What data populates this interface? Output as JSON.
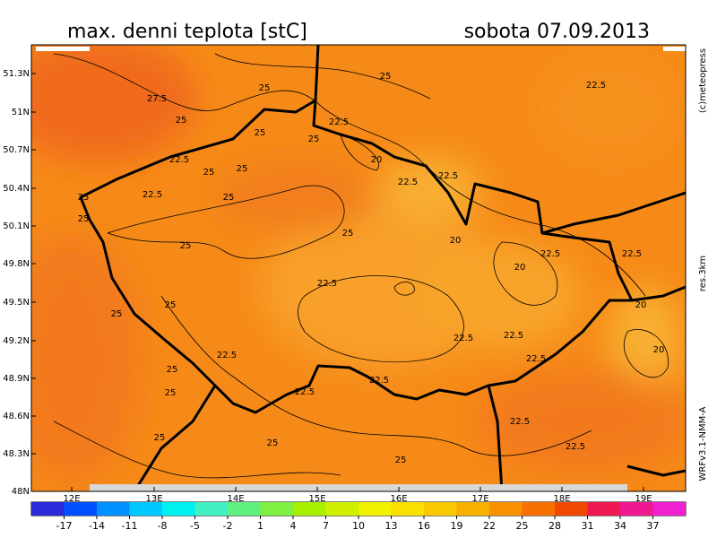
{
  "title": "max. denni teplota [stC]",
  "date": "sobota 07.09.2013",
  "credits": [
    "(c)meteopress",
    "res.3km",
    "WRFv3.1-NMM-A"
  ],
  "lat_labels": [
    "51.3N",
    "51N",
    "50.7N",
    "50.4N",
    "50.1N",
    "49.8N",
    "49.5N",
    "49.2N",
    "48.9N",
    "48.6N",
    "48.3N",
    "48N"
  ],
  "lon_labels": [
    "12E",
    "13E",
    "14E",
    "15E",
    "16E",
    "17E",
    "18E",
    "19E"
  ],
  "contour_labels": [
    "27.5",
    "25",
    "25",
    "22.5",
    "22.5",
    "25",
    "25",
    "25",
    "22.5",
    "20",
    "25",
    "25",
    "22.5",
    "22.5",
    "25",
    "22.5",
    "25",
    "25",
    "20",
    "25",
    "25",
    "20",
    "22.5",
    "22.5",
    "22.5",
    "25",
    "25",
    "20",
    "22.5",
    "22.5",
    "20",
    "22.5",
    "22.5",
    "25",
    "22.5",
    "22.5",
    "25",
    "22.5",
    "25",
    "22.5",
    "25",
    "25"
  ],
  "colorbar": {
    "lim": [
      -20,
      40
    ],
    "ticks": [
      -17,
      -14,
      -11,
      -8,
      -5,
      -2,
      1,
      4,
      7,
      10,
      13,
      16,
      19,
      22,
      25,
      28,
      31,
      34,
      37
    ],
    "colors": [
      "#2a2ad8",
      "#0050ff",
      "#0090ff",
      "#00c8ff",
      "#00f0f0",
      "#40f0c0",
      "#60f080",
      "#80f040",
      "#a8f000",
      "#d0f000",
      "#f0f000",
      "#f8e000",
      "#f8c800",
      "#f8b000",
      "#f89000",
      "#f87000",
      "#f04800",
      "#f01850",
      "#f01890",
      "#f020d0"
    ]
  }
}
